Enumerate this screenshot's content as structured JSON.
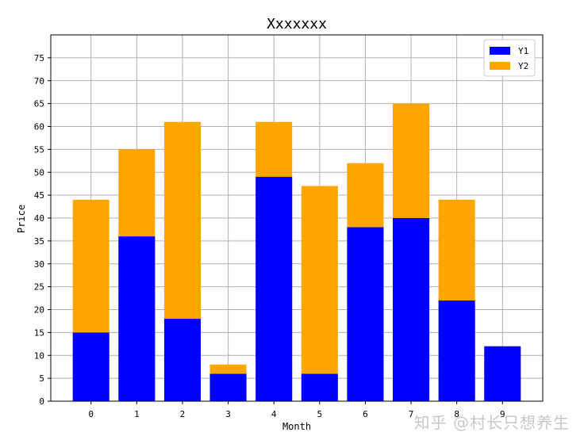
{
  "chart_data": {
    "type": "bar",
    "stacked": true,
    "title": "Xxxxxxx",
    "xlabel": "Month",
    "ylabel": "Price",
    "categories": [
      "0",
      "1",
      "2",
      "3",
      "4",
      "5",
      "6",
      "7",
      "8",
      "9"
    ],
    "series": [
      {
        "name": "Y1",
        "color": "#0000ff",
        "values": [
          15,
          36,
          18,
          6,
          49,
          6,
          38,
          40,
          22,
          12
        ]
      },
      {
        "name": "Y2",
        "color": "#ffa500",
        "values": [
          29,
          19,
          43,
          2,
          12,
          41,
          14,
          25,
          22,
          0
        ]
      }
    ],
    "ylim": [
      0,
      80
    ],
    "yticks": [
      0,
      5,
      10,
      15,
      20,
      25,
      30,
      35,
      40,
      45,
      50,
      55,
      60,
      65,
      70,
      75
    ],
    "grid": true,
    "legend": "top-right"
  },
  "watermark": "知乎 @村长只想养生"
}
